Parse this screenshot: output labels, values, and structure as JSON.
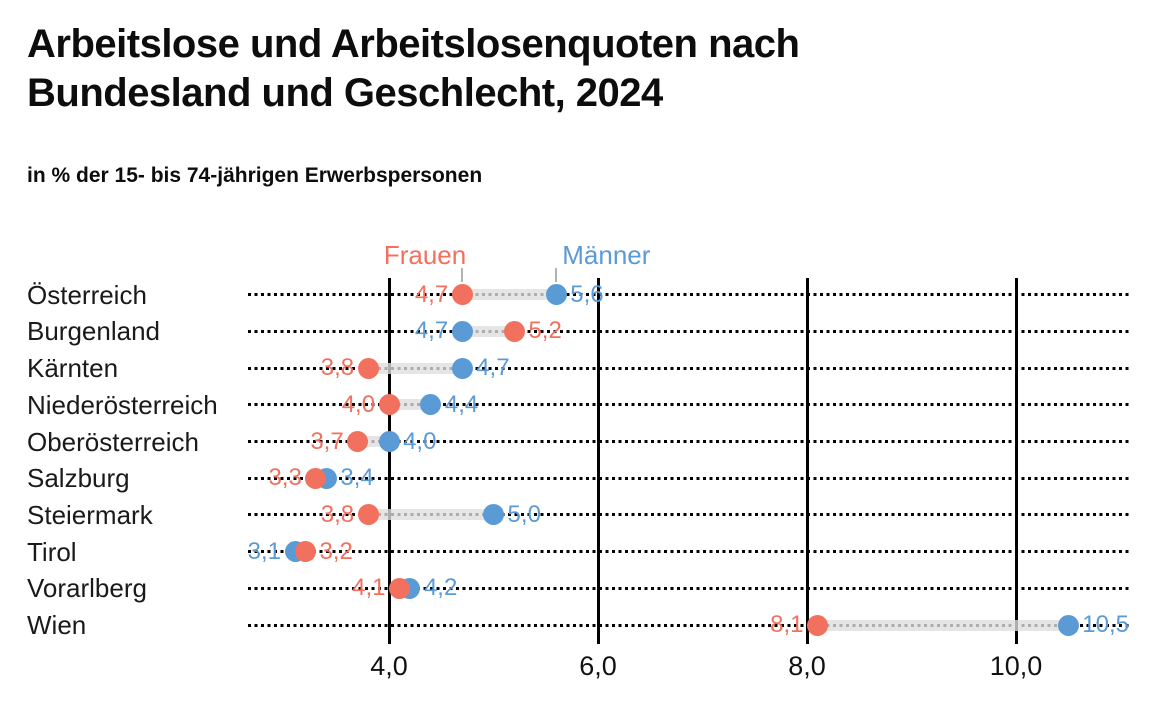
{
  "header": {
    "title": "Arbeitslose und Arbeitslosenquoten nach Bundesland und Geschlecht, 2024",
    "subtitle": "in % der 15- bis 74-jährigen Erwerbspersonen"
  },
  "chart_data": {
    "type": "scatter",
    "variant": "dumbbell-dot-plot",
    "title": "Arbeitslose und Arbeitslosenquoten nach Bundesland und Geschlecht, 2024",
    "subtitle": "in % der 15- bis 74-jährigen Erwerbspersonen",
    "categories": [
      "Österreich",
      "Burgenland",
      "Kärnten",
      "Niederösterreich",
      "Oberösterreich",
      "Salzburg",
      "Steiermark",
      "Tirol",
      "Vorarlberg",
      "Wien"
    ],
    "series": [
      {
        "name": "Frauen",
        "color": "#F1705E",
        "values": [
          4.7,
          5.2,
          3.8,
          4.0,
          3.7,
          3.3,
          3.8,
          3.2,
          4.1,
          8.1
        ],
        "labels": [
          "4,7",
          "5,2",
          "3,8",
          "4,0",
          "3,7",
          "3,3",
          "3,8",
          "3,2",
          "4,1",
          "8,1"
        ]
      },
      {
        "name": "Männer",
        "color": "#5B9BD5",
        "values": [
          5.6,
          4.7,
          4.7,
          4.4,
          4.0,
          3.4,
          5.0,
          3.1,
          4.2,
          10.5
        ],
        "labels": [
          "5,6",
          "4,7",
          "4,7",
          "4,4",
          "4,0",
          "3,4",
          "5,0",
          "3,1",
          "4,2",
          "10,5"
        ]
      }
    ],
    "x_ticks": {
      "values": [
        4,
        6,
        8,
        10
      ],
      "labels": [
        "4,0",
        "6,0",
        "8,0",
        "10,0"
      ]
    },
    "xlim": [
      2.65,
      11.11
    ],
    "xlabel": "",
    "ylabel": "",
    "grid": "vertical solid black gridlines at ticks; horizontal dotted black line per category",
    "legend_position": "top, color-coded labels with leader lines to first-row dots",
    "connector_band_color": "#e3e3e3",
    "value_label_decimal_separator": ","
  }
}
